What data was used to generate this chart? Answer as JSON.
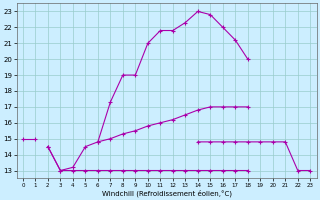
{
  "xlabel": "Windchill (Refroidissement éolien,°C)",
  "xlim": [
    -0.5,
    23.5
  ],
  "ylim": [
    12.5,
    23.5
  ],
  "yticks": [
    13,
    14,
    15,
    16,
    17,
    18,
    19,
    20,
    21,
    22,
    23
  ],
  "xticks": [
    0,
    1,
    2,
    3,
    4,
    5,
    6,
    7,
    8,
    9,
    10,
    11,
    12,
    13,
    14,
    15,
    16,
    17,
    18,
    19,
    20,
    21,
    22,
    23
  ],
  "background_color": "#cceeff",
  "line_color": "#aa00aa",
  "grid_color": "#99cccc",
  "lines": [
    {
      "x": [
        0,
        1,
        2,
        3,
        4,
        5,
        6,
        7,
        8,
        9,
        10,
        11,
        12,
        13,
        14,
        15,
        16,
        17,
        18,
        19,
        20,
        21,
        22,
        23
      ],
      "y": [
        null,
        null,
        null,
        null,
        null,
        null,
        14.8,
        17.3,
        19.0,
        19.0,
        21.0,
        21.8,
        21.8,
        22.3,
        23.0,
        22.8,
        22.0,
        21.2,
        20.0,
        null,
        null,
        null,
        null,
        null
      ]
    },
    {
      "x": [
        0,
        1,
        2,
        3,
        4,
        5,
        6,
        7,
        8,
        9,
        10,
        11,
        12,
        13,
        14,
        15,
        16,
        17,
        18,
        19,
        20,
        21,
        22,
        23
      ],
      "y": [
        15.0,
        15.0,
        null,
        null,
        null,
        null,
        null,
        null,
        null,
        null,
        null,
        null,
        null,
        null,
        null,
        null,
        null,
        null,
        null,
        null,
        null,
        null,
        null,
        null
      ]
    },
    {
      "x": [
        0,
        1,
        2,
        3,
        4,
        5,
        6,
        7,
        8,
        9,
        10,
        11,
        12,
        13,
        14,
        15,
        16,
        17,
        18,
        19,
        20,
        21,
        22,
        23
      ],
      "y": [
        null,
        null,
        14.5,
        13.0,
        13.2,
        14.5,
        14.8,
        15.0,
        15.3,
        15.5,
        15.8,
        16.0,
        16.2,
        16.5,
        16.8,
        17.0,
        17.0,
        17.0,
        17.0,
        null,
        null,
        null,
        null,
        null
      ]
    },
    {
      "x": [
        0,
        1,
        2,
        3,
        4,
        5,
        6,
        7,
        8,
        9,
        10,
        11,
        12,
        13,
        14,
        15,
        16,
        17,
        18,
        19,
        20,
        21,
        22,
        23
      ],
      "y": [
        null,
        null,
        14.5,
        13.0,
        13.0,
        13.0,
        13.0,
        13.0,
        13.0,
        13.0,
        13.0,
        13.0,
        13.0,
        13.0,
        13.0,
        13.0,
        13.0,
        13.0,
        13.0,
        null,
        null,
        null,
        null,
        null
      ]
    },
    {
      "x": [
        0,
        1,
        2,
        3,
        4,
        5,
        6,
        7,
        8,
        9,
        10,
        11,
        12,
        13,
        14,
        15,
        16,
        17,
        18,
        19,
        20,
        21,
        22,
        23
      ],
      "y": [
        null,
        null,
        null,
        null,
        null,
        null,
        null,
        null,
        null,
        null,
        null,
        null,
        null,
        null,
        14.8,
        14.8,
        14.8,
        14.8,
        14.8,
        14.8,
        14.8,
        14.8,
        13.0,
        13.0
      ]
    }
  ]
}
